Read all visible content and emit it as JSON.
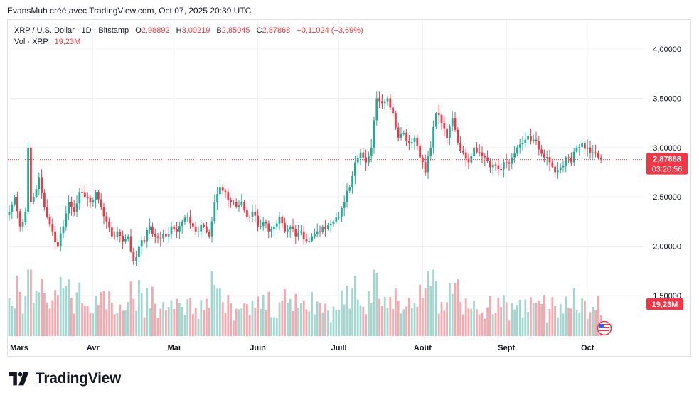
{
  "header": {
    "text": "EvansMuh créé avec TradingView.com, Oct 07, 2025 20:39 UTC"
  },
  "legend": {
    "symbol": "XRP / U.S. Dollar · 1D · Bitstamp",
    "o_label": "O",
    "o_value": "2,98892",
    "h_label": "H",
    "h_value": "3,00219",
    "b_label": "B",
    "b_value": "2,85045",
    "c_label": "C",
    "c_value": "2,87868",
    "change": "−0,11024 (−3,69%)",
    "vol_label": "Vol · XRP",
    "vol_value": "19,23M"
  },
  "brand": {
    "name": "TradingView",
    "logo_icon": "tradingview-logo-icon"
  },
  "colors": {
    "up": "#22ab94",
    "down": "#f23645",
    "up_vol": "#a1d7ce",
    "down_vol": "#f5a8ae",
    "grid": "#f0f3fa",
    "axis_text": "#131722"
  },
  "chart_data": {
    "type": "candlestick",
    "y_axis": {
      "ticks": [
        4.0,
        3.5,
        3.0,
        2.5,
        2.0,
        1.5
      ],
      "tick_labels": [
        "4,00000",
        "3,50000",
        "3,00000",
        "2,50000",
        "2,00000",
        "1,50000"
      ]
    },
    "x_axis": {
      "tick_labels": [
        "Mars",
        "Avr",
        "Mai",
        "Juin",
        "Juill",
        "Août",
        "Sept",
        "Oct"
      ],
      "tick_day_index": [
        0,
        31,
        61,
        92,
        122,
        153,
        184,
        214
      ]
    },
    "last_price": {
      "value": 2.87868,
      "label": "2,87868",
      "countdown": "03:20:56"
    },
    "last_volume": {
      "label": "19,23M"
    },
    "volume_axis_fraction": 0.85,
    "anchors": [
      [
        0,
        2.35
      ],
      [
        2,
        2.5
      ],
      [
        4,
        2.2
      ],
      [
        6,
        2.35
      ],
      [
        7,
        3.0
      ],
      [
        8,
        2.45
      ],
      [
        9,
        2.5
      ],
      [
        11,
        2.7
      ],
      [
        13,
        2.4
      ],
      [
        14,
        2.3
      ],
      [
        16,
        2.15
      ],
      [
        18,
        2.0
      ],
      [
        20,
        2.2
      ],
      [
        22,
        2.45
      ],
      [
        24,
        2.35
      ],
      [
        26,
        2.55
      ],
      [
        28,
        2.5
      ],
      [
        30,
        2.45
      ],
      [
        32,
        2.55
      ],
      [
        34,
        2.4
      ],
      [
        36,
        2.25
      ],
      [
        38,
        2.1
      ],
      [
        40,
        2.15
      ],
      [
        42,
        2.05
      ],
      [
        44,
        2.1
      ],
      [
        46,
        1.85
      ],
      [
        48,
        2.0
      ],
      [
        50,
        2.05
      ],
      [
        52,
        2.2
      ],
      [
        54,
        2.1
      ],
      [
        56,
        2.08
      ],
      [
        58,
        2.1
      ],
      [
        60,
        2.2
      ],
      [
        62,
        2.15
      ],
      [
        64,
        2.25
      ],
      [
        66,
        2.3
      ],
      [
        68,
        2.2
      ],
      [
        70,
        2.15
      ],
      [
        72,
        2.2
      ],
      [
        74,
        2.1
      ],
      [
        76,
        2.45
      ],
      [
        78,
        2.6
      ],
      [
        80,
        2.55
      ],
      [
        82,
        2.45
      ],
      [
        84,
        2.4
      ],
      [
        86,
        2.45
      ],
      [
        88,
        2.3
      ],
      [
        90,
        2.35
      ],
      [
        92,
        2.2
      ],
      [
        94,
        2.25
      ],
      [
        96,
        2.15
      ],
      [
        98,
        2.2
      ],
      [
        100,
        2.3
      ],
      [
        102,
        2.15
      ],
      [
        104,
        2.2
      ],
      [
        106,
        2.1
      ],
      [
        108,
        2.15
      ],
      [
        110,
        2.05
      ],
      [
        112,
        2.1
      ],
      [
        114,
        2.15
      ],
      [
        116,
        2.2
      ],
      [
        118,
        2.22
      ],
      [
        120,
        2.25
      ],
      [
        122,
        2.3
      ],
      [
        124,
        2.45
      ],
      [
        126,
        2.6
      ],
      [
        128,
        2.85
      ],
      [
        130,
        2.95
      ],
      [
        132,
        2.85
      ],
      [
        134,
        3.0
      ],
      [
        136,
        3.5
      ],
      [
        138,
        3.45
      ],
      [
        140,
        3.5
      ],
      [
        142,
        3.35
      ],
      [
        144,
        3.1
      ],
      [
        146,
        3.15
      ],
      [
        148,
        3.05
      ],
      [
        150,
        3.1
      ],
      [
        152,
        2.9
      ],
      [
        154,
        2.75
      ],
      [
        156,
        3.0
      ],
      [
        158,
        3.35
      ],
      [
        160,
        3.25
      ],
      [
        162,
        3.1
      ],
      [
        164,
        3.3
      ],
      [
        166,
        3.05
      ],
      [
        168,
        2.95
      ],
      [
        170,
        2.85
      ],
      [
        172,
        3.0
      ],
      [
        174,
        2.95
      ],
      [
        176,
        2.9
      ],
      [
        178,
        2.8
      ],
      [
        180,
        2.82
      ],
      [
        182,
        2.78
      ],
      [
        184,
        2.85
      ],
      [
        186,
        2.9
      ],
      [
        188,
        3.0
      ],
      [
        190,
        3.05
      ],
      [
        192,
        3.12
      ],
      [
        194,
        3.08
      ],
      [
        196,
        2.98
      ],
      [
        198,
        2.9
      ],
      [
        200,
        2.85
      ],
      [
        202,
        2.75
      ],
      [
        204,
        2.8
      ],
      [
        206,
        2.9
      ],
      [
        208,
        2.85
      ],
      [
        210,
        3.0
      ],
      [
        212,
        3.05
      ],
      [
        214,
        3.0
      ],
      [
        216,
        2.95
      ],
      [
        218,
        2.9
      ],
      [
        219,
        2.87868
      ]
    ]
  }
}
